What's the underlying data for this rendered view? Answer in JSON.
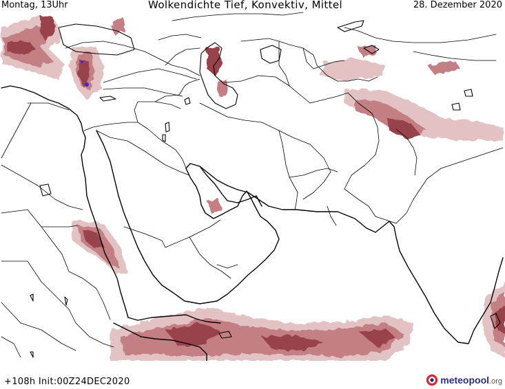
{
  "header": {
    "day_time": "Montag, 13Uhr",
    "title": "Wolkendichte  Tief, Konvektiv, Mittel",
    "date": "28. Dezember 2020"
  },
  "footer": {
    "run_info": "+108h Init:00Z24DEC2020",
    "brand_main": "meteopool",
    "brand_tld": ".org"
  },
  "colors": {
    "cloud_low": "#e3c2c4",
    "cloud_mid": "#c47f84",
    "cloud_high": "#98434b",
    "convective": "#3b2bd6",
    "border": "#000000",
    "brand": "#2a2f7a"
  }
}
